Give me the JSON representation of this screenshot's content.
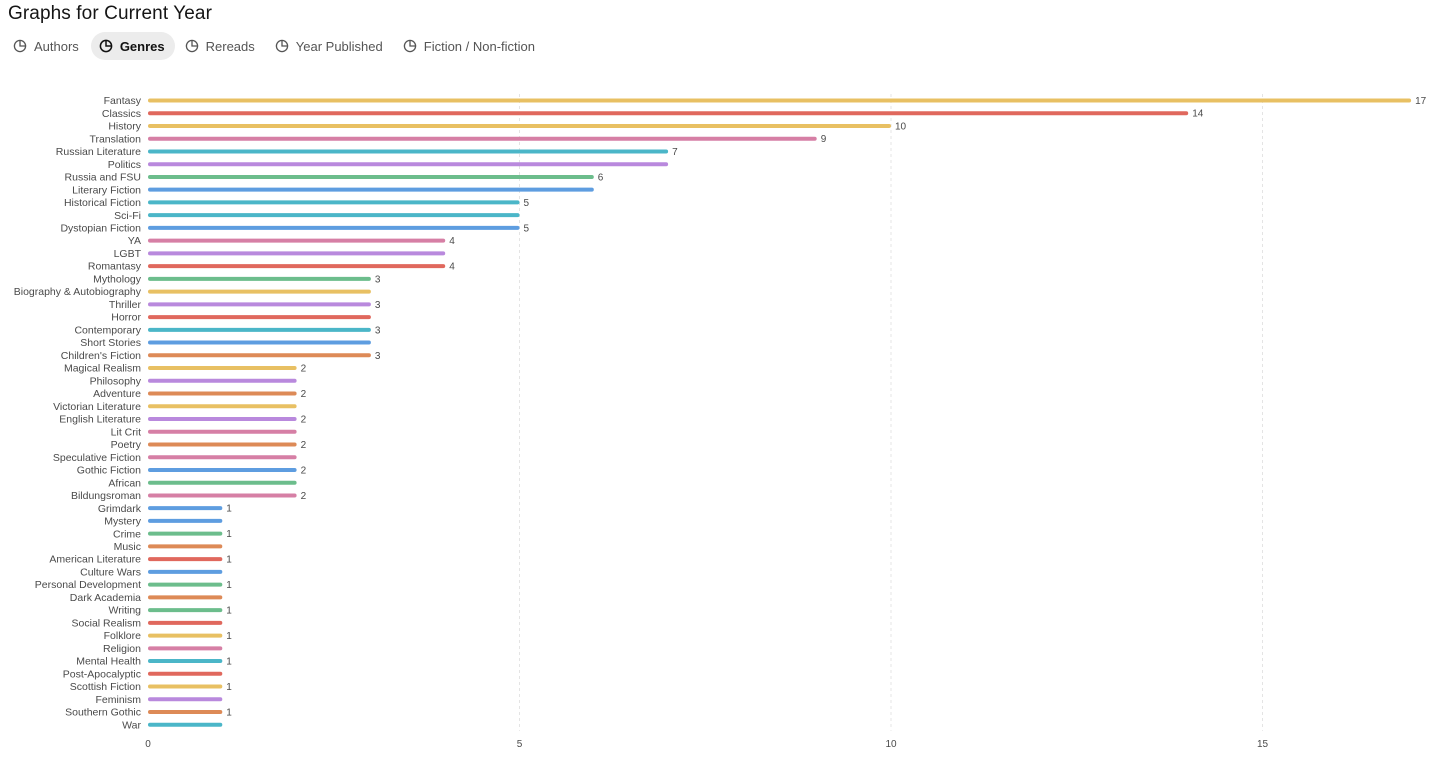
{
  "header": {
    "title": "Graphs for Current Year"
  },
  "tabs": [
    {
      "label": "Authors",
      "icon": "pie-chart-icon",
      "active": false
    },
    {
      "label": "Genres",
      "icon": "pie-chart-icon",
      "active": true
    },
    {
      "label": "Rereads",
      "icon": "pie-chart-icon",
      "active": false
    },
    {
      "label": "Year Published",
      "icon": "pie-chart-icon",
      "active": false
    },
    {
      "label": "Fiction / Non-fiction",
      "icon": "pie-chart-icon",
      "active": false
    }
  ],
  "colors": {
    "yellow": "#e8c063",
    "red": "#e0685d",
    "pink": "#d67fa5",
    "teal": "#4bb6c8",
    "purple": "#b989dd",
    "green": "#6cbd8c",
    "blue": "#5e9de0",
    "orange": "#dd8a57",
    "grid": "#e4e4e4",
    "text": "#4a4a4a"
  },
  "chart_data": {
    "type": "bar",
    "orientation": "horizontal",
    "title": "",
    "xlabel": "",
    "ylabel": "",
    "xlim": [
      0,
      17
    ],
    "xticks": [
      0,
      5,
      10,
      15
    ],
    "grid": "vertical-dashed",
    "categories": [
      "Fantasy",
      "Classics",
      "History",
      "Translation",
      "Russian Literature",
      "Politics",
      "Russia and FSU",
      "Literary Fiction",
      "Historical Fiction",
      "Sci-Fi",
      "Dystopian Fiction",
      "YA",
      "LGBT",
      "Romantasy",
      "Mythology",
      "Biography & Autobiography",
      "Thriller",
      "Horror",
      "Contemporary",
      "Short Stories",
      "Children's Fiction",
      "Magical Realism",
      "Philosophy",
      "Adventure",
      "Victorian Literature",
      "English Literature",
      "Lit Crit",
      "Poetry",
      "Speculative Fiction",
      "Gothic Fiction",
      "African",
      "Bildungsroman",
      "Grimdark",
      "Mystery",
      "Crime",
      "Music",
      "American Literature",
      "Culture Wars",
      "Personal Development",
      "Dark Academia",
      "Writing",
      "Social Realism",
      "Folklore",
      "Religion",
      "Mental Health",
      "Post-Apocalyptic",
      "Scottish Fiction",
      "Feminism",
      "Southern Gothic",
      "War"
    ],
    "values": [
      17,
      14,
      10,
      9,
      7,
      7,
      6,
      6,
      5,
      5,
      5,
      4,
      4,
      4,
      3,
      3,
      3,
      3,
      3,
      3,
      3,
      2,
      2,
      2,
      2,
      2,
      2,
      2,
      2,
      2,
      2,
      2,
      1,
      1,
      1,
      1,
      1,
      1,
      1,
      1,
      1,
      1,
      1,
      1,
      1,
      1,
      1,
      1,
      1,
      1
    ],
    "bar_colors": [
      "yellow",
      "red",
      "yellow",
      "pink",
      "teal",
      "purple",
      "green",
      "blue",
      "teal",
      "teal",
      "blue",
      "pink",
      "purple",
      "red",
      "green",
      "yellow",
      "purple",
      "red",
      "teal",
      "blue",
      "orange",
      "yellow",
      "purple",
      "orange",
      "yellow",
      "purple",
      "pink",
      "orange",
      "pink",
      "blue",
      "green",
      "pink",
      "blue",
      "blue",
      "green",
      "orange",
      "red",
      "blue",
      "green",
      "orange",
      "green",
      "red",
      "yellow",
      "pink",
      "teal",
      "red",
      "yellow",
      "purple",
      "orange",
      "teal"
    ],
    "value_labels": [
      "17",
      "14",
      "10",
      "9",
      "7",
      "",
      "6",
      "",
      "5",
      "",
      "5",
      "4",
      "",
      "4",
      "3",
      "",
      "3",
      "",
      "3",
      "",
      "3",
      "2",
      "",
      "2",
      "",
      "2",
      "",
      "2",
      "",
      "2",
      "",
      "2",
      "1",
      "",
      "1",
      "",
      "1",
      "",
      "1",
      "",
      "1",
      "",
      "1",
      "",
      "1",
      "",
      "1",
      "",
      "1",
      ""
    ]
  }
}
